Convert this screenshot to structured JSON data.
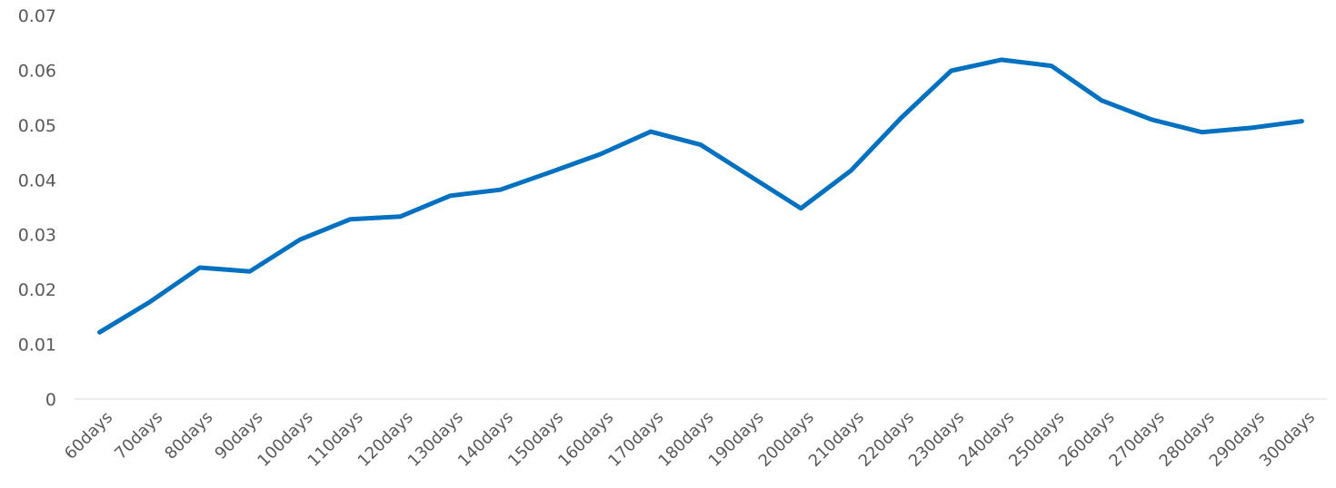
{
  "chart_data": {
    "type": "line",
    "title": "",
    "xlabel": "",
    "ylabel": "",
    "ylim": [
      0,
      0.07
    ],
    "yticks": [
      "0",
      "0.01",
      "0.02",
      "0.03",
      "0.04",
      "0.05",
      "0.06",
      "0.07"
    ],
    "grid": false,
    "legend": "none",
    "line_color": "#0070C0",
    "categories": [
      "60days",
      "70days",
      "80days",
      "90days",
      "100days",
      "110days",
      "120days",
      "130days",
      "140days",
      "150days",
      "160days",
      "170days",
      "180days",
      "190days",
      "200days",
      "210days",
      "220days",
      "230days",
      "240days",
      "250days",
      "260days",
      "270days",
      "280days",
      "290days",
      "300days"
    ],
    "series": [
      {
        "values": [
          0.0122,
          0.0177,
          0.024,
          0.0233,
          0.0291,
          0.0328,
          0.0333,
          0.0371,
          0.0382,
          0.0414,
          0.0447,
          0.0488,
          0.0464,
          0.0406,
          0.0348,
          0.0417,
          0.0513,
          0.0599,
          0.0619,
          0.0608,
          0.0545,
          0.051,
          0.0487,
          0.0495,
          0.0507
        ]
      }
    ]
  }
}
